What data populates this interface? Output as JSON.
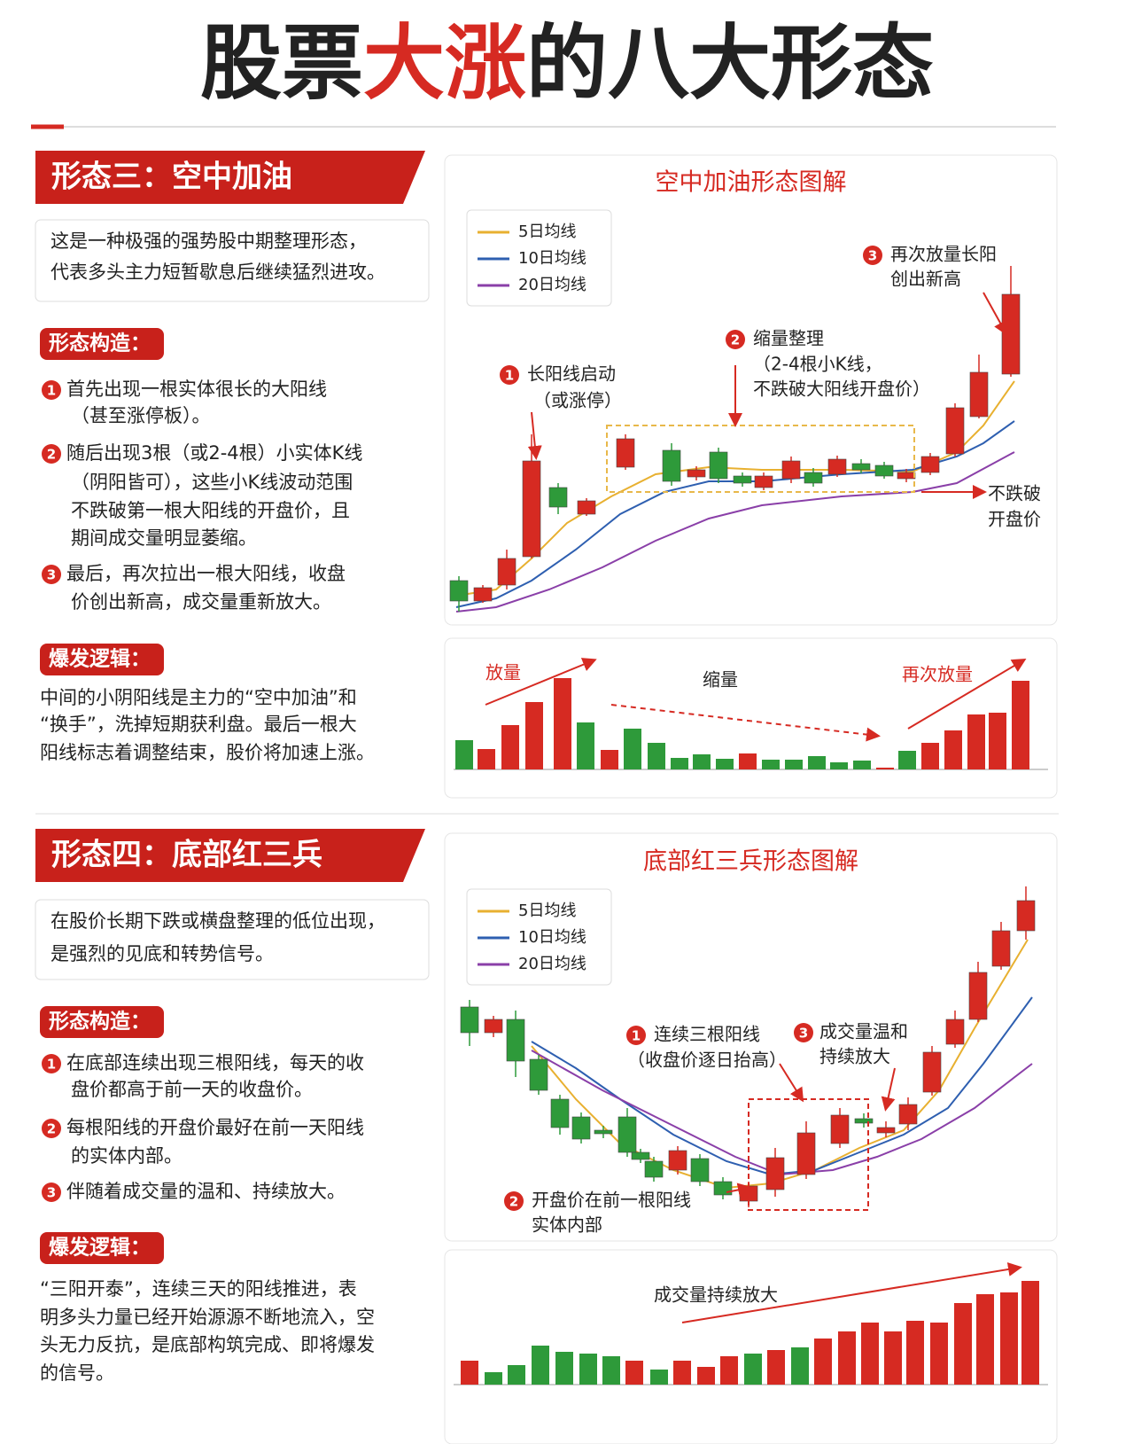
{
  "header": {
    "title": [
      "股票",
      "大涨",
      "的八大形态"
    ]
  },
  "sections": [
    {
      "heading": "形态三：空中加油",
      "intro": [
        "这是一种极强的强势股中期整理形态，",
        "代表多头主力短暂歇息后继续猛烈进攻。"
      ],
      "structure_label": "形态构造：",
      "structure": [
        {
          "num": "1",
          "lines": [
            "首先出现一根实体很长的大阳线",
            "（甚至涨停板）。"
          ]
        },
        {
          "num": "2",
          "lines": [
            "随后出现3根（或2-4根）小实体K线",
            "（阴阳皆可），这些小K线波动范围",
            "不跌破第一根大阳线的开盘价，且",
            "期间成交量明显萎缩。"
          ]
        },
        {
          "num": "3",
          "lines": [
            "最后，再次拉出一根大阳线，收盘",
            "价创出新高，成交量重新放大。"
          ]
        }
      ],
      "logic_label": "爆发逻辑：",
      "logic": [
        "中间的小阴阳线是主力的“空中加油”和",
        "“换手”，洗掉短期获利盘。最后一根大",
        "阳线标志着调整结束，股价将加速上涨。"
      ],
      "chart": {
        "title": "空中加油形态图解",
        "legend": [
          "5日均线",
          "10日均线",
          "20日均线"
        ],
        "annotations": [
          {
            "num": "1",
            "lines": [
              "长阳线启动",
              "（或涨停）"
            ]
          },
          {
            "num": "2",
            "lines": [
              "缩量整理",
              "（2-4根小K线，",
              "不跌破大阳线开盘价）"
            ]
          },
          {
            "num": "3",
            "lines": [
              "再次放量长阳",
              "创出新高"
            ]
          },
          {
            "lines": [
              "不跌破",
              "开盘价"
            ]
          }
        ],
        "volume_labels": [
          "放量",
          "缩量",
          "再次放量"
        ]
      }
    },
    {
      "heading": "形态四：底部红三兵",
      "intro": [
        "在股价长期下跌或横盘整理的低位出现，",
        "是强烈的见底和转势信号。"
      ],
      "structure_label": "形态构造：",
      "structure": [
        {
          "num": "1",
          "lines": [
            "在底部连续出现三根阳线，每天的收",
            "盘价都高于前一天的收盘价。"
          ]
        },
        {
          "num": "2",
          "lines": [
            "每根阳线的开盘价最好在前一天阳线",
            "的实体内部。"
          ]
        },
        {
          "num": "3",
          "lines": [
            "伴随着成交量的温和、持续放大。"
          ]
        }
      ],
      "logic_label": "爆发逻辑：",
      "logic": [
        "“三阳开泰”，连续三天的阳线推进，表",
        "明多头力量已经开始源源不断地流入，空",
        "头无力反抗，是底部构筑完成、即将爆发",
        "的信号。"
      ],
      "chart": {
        "title": "底部红三兵形态图解",
        "legend": [
          "5日均线",
          "10日均线",
          "20日均线"
        ],
        "annotations": [
          {
            "num": "1",
            "lines": [
              "连续三根阳线",
              "（收盘价逐日抬高）"
            ]
          },
          {
            "num": "3",
            "lines": [
              "成交量温和",
              "持续放大"
            ]
          },
          {
            "num": "2",
            "lines": [
              "开盘价在前一根阳线",
              "实体内部"
            ]
          }
        ],
        "volume_labels": [
          "成交量持续放大"
        ]
      }
    }
  ]
}
